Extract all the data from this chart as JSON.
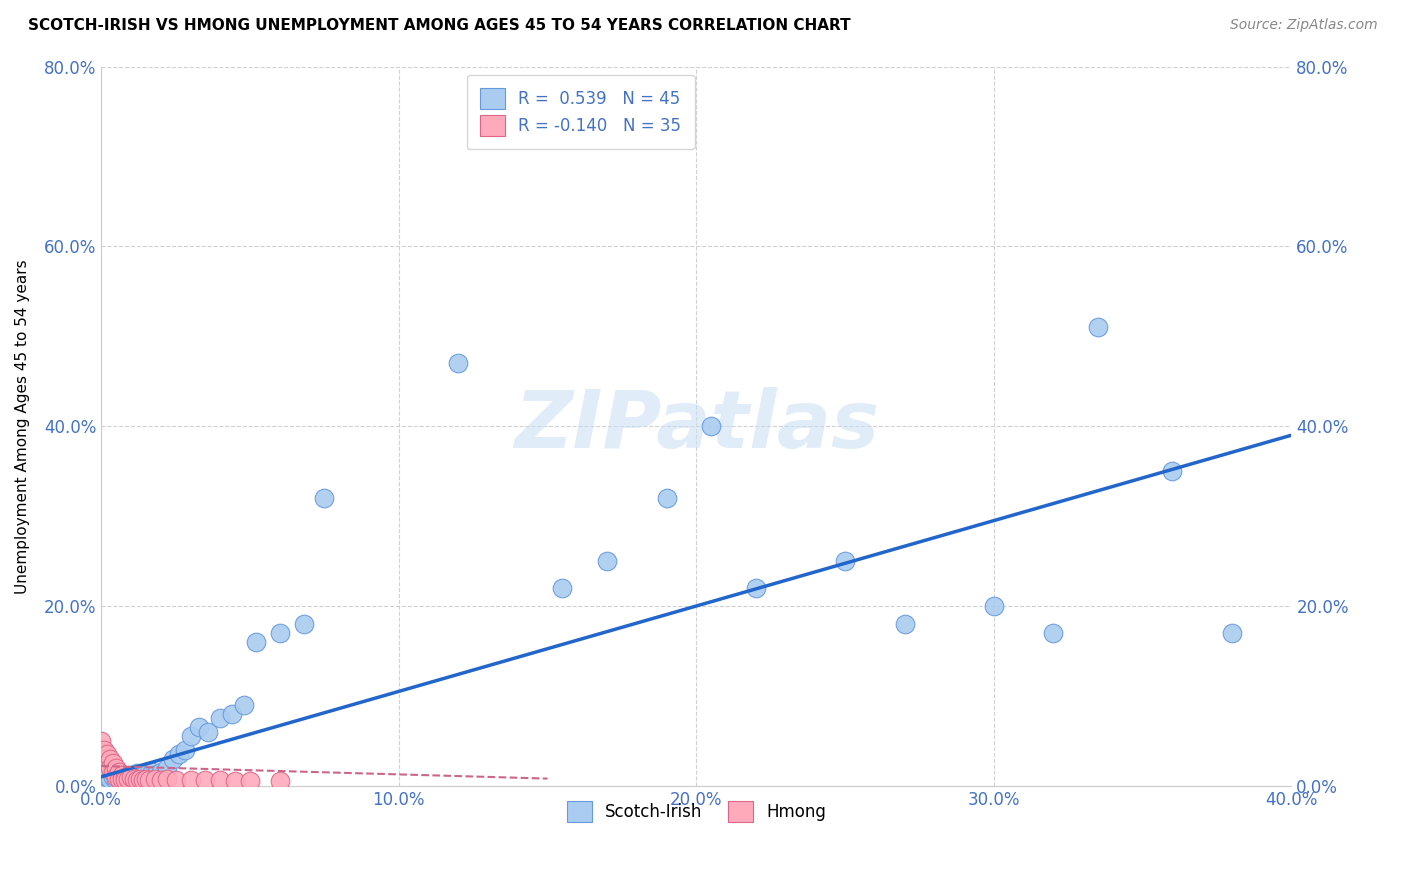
{
  "title": "SCOTCH-IRISH VS HMONG UNEMPLOYMENT AMONG AGES 45 TO 54 YEARS CORRELATION CHART",
  "source": "Source: ZipAtlas.com",
  "ylabel": "Unemployment Among Ages 45 to 54 years",
  "xlim": [
    0.0,
    0.4
  ],
  "ylim": [
    0.0,
    0.8
  ],
  "xticks": [
    0.0,
    0.1,
    0.2,
    0.3,
    0.4
  ],
  "yticks": [
    0.0,
    0.2,
    0.4,
    0.6,
    0.8
  ],
  "scotch_irish_R": 0.539,
  "scotch_irish_N": 45,
  "hmong_R": -0.14,
  "hmong_N": 35,
  "scotch_irish_color": "#aaccf0",
  "scotch_irish_edge_color": "#6699dd",
  "scotch_irish_line_color": "#2266cc",
  "hmong_color": "#ffaabb",
  "hmong_edge_color": "#dd6688",
  "hmong_line_color": "#cc6688",
  "background_color": "#ffffff",
  "watermark": "ZIPatlas",
  "grid_color": "#cccccc",
  "tick_color": "#4472c4",
  "scotch_irish_x": [
    0.002,
    0.003,
    0.004,
    0.005,
    0.006,
    0.007,
    0.008,
    0.009,
    0.01,
    0.011,
    0.012,
    0.013,
    0.014,
    0.015,
    0.016,
    0.017,
    0.018,
    0.02,
    0.022,
    0.024,
    0.026,
    0.028,
    0.03,
    0.033,
    0.036,
    0.04,
    0.044,
    0.048,
    0.052,
    0.06,
    0.068,
    0.075,
    0.12,
    0.155,
    0.17,
    0.19,
    0.205,
    0.22,
    0.25,
    0.27,
    0.3,
    0.32,
    0.335,
    0.36,
    0.38
  ],
  "scotch_irish_y": [
    0.01,
    0.008,
    0.01,
    0.006,
    0.012,
    0.008,
    0.01,
    0.006,
    0.012,
    0.01,
    0.014,
    0.01,
    0.012,
    0.015,
    0.01,
    0.015,
    0.012,
    0.015,
    0.02,
    0.03,
    0.035,
    0.04,
    0.055,
    0.065,
    0.06,
    0.075,
    0.08,
    0.09,
    0.16,
    0.17,
    0.18,
    0.32,
    0.47,
    0.22,
    0.25,
    0.32,
    0.4,
    0.22,
    0.25,
    0.18,
    0.2,
    0.17,
    0.51,
    0.35,
    0.17
  ],
  "hmong_x": [
    0.0,
    0.001,
    0.001,
    0.002,
    0.002,
    0.003,
    0.003,
    0.004,
    0.004,
    0.005,
    0.005,
    0.006,
    0.006,
    0.007,
    0.007,
    0.008,
    0.008,
    0.009,
    0.01,
    0.011,
    0.012,
    0.013,
    0.014,
    0.015,
    0.016,
    0.018,
    0.02,
    0.022,
    0.025,
    0.03,
    0.035,
    0.04,
    0.045,
    0.05,
    0.06
  ],
  "hmong_y": [
    0.05,
    0.04,
    0.03,
    0.035,
    0.025,
    0.03,
    0.02,
    0.025,
    0.015,
    0.02,
    0.01,
    0.015,
    0.008,
    0.012,
    0.008,
    0.01,
    0.006,
    0.008,
    0.01,
    0.008,
    0.006,
    0.008,
    0.006,
    0.008,
    0.006,
    0.008,
    0.006,
    0.008,
    0.006,
    0.006,
    0.006,
    0.006,
    0.005,
    0.005,
    0.005
  ],
  "si_line_x": [
    0.0,
    0.4
  ],
  "si_line_y": [
    0.01,
    0.39
  ],
  "hmong_line_x": [
    0.0,
    0.15
  ],
  "hmong_line_y": [
    0.022,
    0.008
  ]
}
